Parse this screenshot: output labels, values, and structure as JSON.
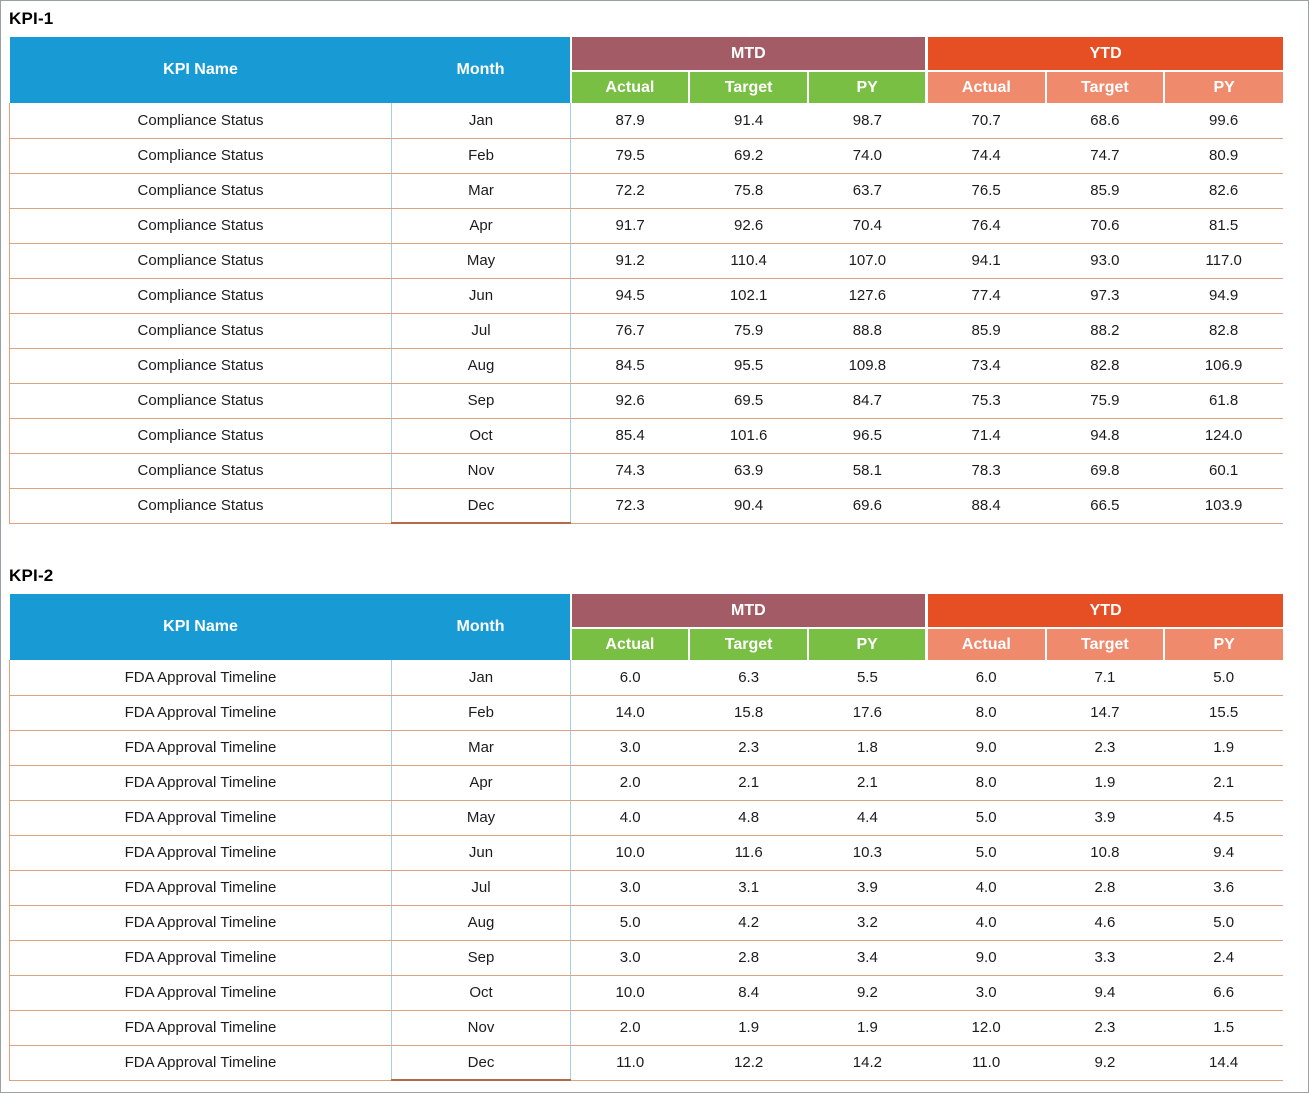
{
  "headers": {
    "kpi_name": "KPI Name",
    "month": "Month",
    "mtd": "MTD",
    "ytd": "YTD",
    "sub": [
      "Actual",
      "Target",
      "PY"
    ]
  },
  "colors": {
    "header_blue": "#189BD5",
    "mtd_header": "#A35C66",
    "mtd_sub": "#79BF43",
    "ytd_header": "#E64F24",
    "ytd_sub": "#EF8A6D",
    "row_border": "#DDA380"
  },
  "chart_data": [
    {
      "type": "table",
      "title": "KPI-1",
      "kpi_name": "Compliance Status",
      "column_groups": [
        {
          "label": "MTD",
          "columns": [
            "Actual",
            "Target",
            "PY"
          ]
        },
        {
          "label": "YTD",
          "columns": [
            "Actual",
            "Target",
            "PY"
          ]
        }
      ],
      "columns": [
        "KPI Name",
        "Month",
        "MTD Actual",
        "MTD Target",
        "MTD PY",
        "YTD Actual",
        "YTD Target",
        "YTD PY"
      ],
      "rows": [
        [
          "Compliance Status",
          "Jan",
          "87.9",
          "91.4",
          "98.7",
          "70.7",
          "68.6",
          "99.6"
        ],
        [
          "Compliance Status",
          "Feb",
          "79.5",
          "69.2",
          "74.0",
          "74.4",
          "74.7",
          "80.9"
        ],
        [
          "Compliance Status",
          "Mar",
          "72.2",
          "75.8",
          "63.7",
          "76.5",
          "85.9",
          "82.6"
        ],
        [
          "Compliance Status",
          "Apr",
          "91.7",
          "92.6",
          "70.4",
          "76.4",
          "70.6",
          "81.5"
        ],
        [
          "Compliance Status",
          "May",
          "91.2",
          "110.4",
          "107.0",
          "94.1",
          "93.0",
          "117.0"
        ],
        [
          "Compliance Status",
          "Jun",
          "94.5",
          "102.1",
          "127.6",
          "77.4",
          "97.3",
          "94.9"
        ],
        [
          "Compliance Status",
          "Jul",
          "76.7",
          "75.9",
          "88.8",
          "85.9",
          "88.2",
          "82.8"
        ],
        [
          "Compliance Status",
          "Aug",
          "84.5",
          "95.5",
          "109.8",
          "73.4",
          "82.8",
          "106.9"
        ],
        [
          "Compliance Status",
          "Sep",
          "92.6",
          "69.5",
          "84.7",
          "75.3",
          "75.9",
          "61.8"
        ],
        [
          "Compliance Status",
          "Oct",
          "85.4",
          "101.6",
          "96.5",
          "71.4",
          "94.8",
          "124.0"
        ],
        [
          "Compliance Status",
          "Nov",
          "74.3",
          "63.9",
          "58.1",
          "78.3",
          "69.8",
          "60.1"
        ],
        [
          "Compliance Status",
          "Dec",
          "72.3",
          "90.4",
          "69.6",
          "88.4",
          "66.5",
          "103.9"
        ]
      ]
    },
    {
      "type": "table",
      "title": "KPI-2",
      "kpi_name": "FDA Approval Timeline",
      "column_groups": [
        {
          "label": "MTD",
          "columns": [
            "Actual",
            "Target",
            "PY"
          ]
        },
        {
          "label": "YTD",
          "columns": [
            "Actual",
            "Target",
            "PY"
          ]
        }
      ],
      "columns": [
        "KPI Name",
        "Month",
        "MTD Actual",
        "MTD Target",
        "MTD PY",
        "YTD Actual",
        "YTD Target",
        "YTD PY"
      ],
      "rows": [
        [
          "FDA Approval Timeline",
          "Jan",
          "6.0",
          "6.3",
          "5.5",
          "6.0",
          "7.1",
          "5.0"
        ],
        [
          "FDA Approval Timeline",
          "Feb",
          "14.0",
          "15.8",
          "17.6",
          "8.0",
          "14.7",
          "15.5"
        ],
        [
          "FDA Approval Timeline",
          "Mar",
          "3.0",
          "2.3",
          "1.8",
          "9.0",
          "2.3",
          "1.9"
        ],
        [
          "FDA Approval Timeline",
          "Apr",
          "2.0",
          "2.1",
          "2.1",
          "8.0",
          "1.9",
          "2.1"
        ],
        [
          "FDA Approval Timeline",
          "May",
          "4.0",
          "4.8",
          "4.4",
          "5.0",
          "3.9",
          "4.5"
        ],
        [
          "FDA Approval Timeline",
          "Jun",
          "10.0",
          "11.6",
          "10.3",
          "5.0",
          "10.8",
          "9.4"
        ],
        [
          "FDA Approval Timeline",
          "Jul",
          "3.0",
          "3.1",
          "3.9",
          "4.0",
          "2.8",
          "3.6"
        ],
        [
          "FDA Approval Timeline",
          "Aug",
          "5.0",
          "4.2",
          "3.2",
          "4.0",
          "4.6",
          "5.0"
        ],
        [
          "FDA Approval Timeline",
          "Sep",
          "3.0",
          "2.8",
          "3.4",
          "9.0",
          "3.3",
          "2.4"
        ],
        [
          "FDA Approval Timeline",
          "Oct",
          "10.0",
          "8.4",
          "9.2",
          "3.0",
          "9.4",
          "6.6"
        ],
        [
          "FDA Approval Timeline",
          "Nov",
          "2.0",
          "1.9",
          "1.9",
          "12.0",
          "2.3",
          "1.5"
        ],
        [
          "FDA Approval Timeline",
          "Dec",
          "11.0",
          "12.2",
          "14.2",
          "11.0",
          "9.2",
          "14.4"
        ]
      ]
    }
  ]
}
